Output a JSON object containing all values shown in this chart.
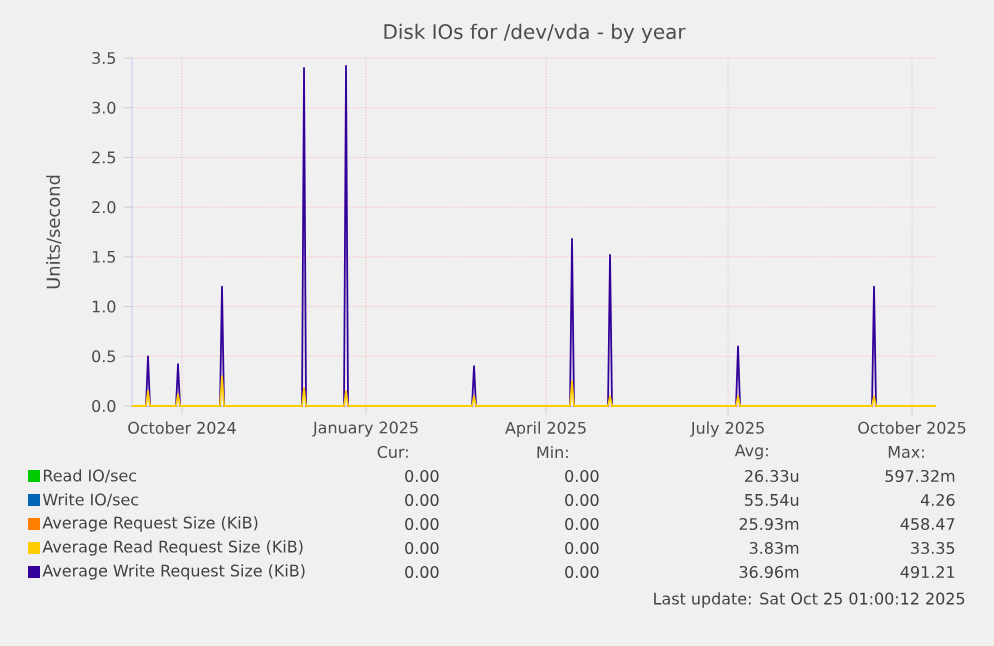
{
  "chart_data": {
    "type": "line",
    "title": "Disk IOs for /dev/vda - by year",
    "ylabel": "Units/second",
    "xlim": [
      "2024-09-06",
      "2025-10-13"
    ],
    "ylim": [
      0,
      3.5
    ],
    "xticks": [
      {
        "value": "2024-10-01",
        "label": "October 2024"
      },
      {
        "value": "2025-01-01",
        "label": "January 2025"
      },
      {
        "value": "2025-04-01",
        "label": "April 2025"
      },
      {
        "value": "2025-07-01",
        "label": "July 2025"
      },
      {
        "value": "2025-10-01",
        "label": "October 2025"
      }
    ],
    "yticks": [
      {
        "value": 0,
        "label": "0.0"
      },
      {
        "value": 0.5,
        "label": "0.5"
      },
      {
        "value": 1,
        "label": "1.0"
      },
      {
        "value": 1.5,
        "label": "1.5"
      },
      {
        "value": 2,
        "label": "2.0"
      },
      {
        "value": 2.5,
        "label": "2.5"
      },
      {
        "value": 3,
        "label": "3.0"
      },
      {
        "value": 3.5,
        "label": "3.5"
      }
    ],
    "grid": true,
    "legend": "bottom",
    "marker": "none",
    "line_style": "solid",
    "series": [
      {
        "name": "Read IO/sec",
        "color": "#00cc00"
      },
      {
        "name": "Write IO/sec",
        "color": "#0066b3"
      },
      {
        "name": "Average Request Size (KiB)",
        "color": "#ff8000"
      },
      {
        "name": "Average Read Request Size (KiB)",
        "color": "#ffcc00",
        "x": [
          "2024-09-06",
          "2024-09-13",
          "2024-09-14",
          "2024-09-15",
          "2024-09-28",
          "2024-09-29",
          "2024-09-30",
          "2024-10-20",
          "2024-10-21",
          "2024-10-22",
          "2024-11-30",
          "2024-12-01",
          "2024-12-02",
          "2024-12-21",
          "2024-12-22",
          "2024-12-23",
          "2025-02-23",
          "2025-02-24",
          "2025-02-25",
          "2025-04-13",
          "2025-04-14",
          "2025-04-15",
          "2025-05-02",
          "2025-05-03",
          "2025-05-04",
          "2025-07-05",
          "2025-07-06",
          "2025-07-07",
          "2025-09-11",
          "2025-09-12",
          "2025-09-13",
          "2025-10-13"
        ],
        "values": [
          0,
          0,
          0.15,
          0,
          0,
          0.12,
          0,
          0,
          0.3,
          0,
          0,
          0.18,
          0,
          0,
          0.15,
          0,
          0,
          0.1,
          0,
          0,
          0.25,
          0,
          0,
          0.1,
          0,
          0,
          0.1,
          0,
          0,
          0.1,
          0,
          0
        ]
      },
      {
        "name": "Average Write Request Size (KiB)",
        "color": "#330099",
        "x": [
          "2024-09-06",
          "2024-09-13",
          "2024-09-14",
          "2024-09-15",
          "2024-09-28",
          "2024-09-29",
          "2024-09-30",
          "2024-10-20",
          "2024-10-21",
          "2024-10-22",
          "2024-11-30",
          "2024-12-01",
          "2024-12-02",
          "2024-12-21",
          "2024-12-22",
          "2024-12-23",
          "2025-02-23",
          "2025-02-24",
          "2025-02-25",
          "2025-04-13",
          "2025-04-14",
          "2025-04-15",
          "2025-05-02",
          "2025-05-03",
          "2025-05-04",
          "2025-07-05",
          "2025-07-06",
          "2025-07-07",
          "2025-09-11",
          "2025-09-12",
          "2025-09-13",
          "2025-10-13"
        ],
        "values": [
          0,
          0,
          0.5,
          0,
          0,
          0.42,
          0,
          0,
          1.2,
          0,
          0,
          3.4,
          0,
          0,
          3.42,
          0,
          0,
          0.4,
          0,
          0,
          1.68,
          0,
          0,
          1.52,
          0,
          0,
          0.6,
          0,
          0,
          1.2,
          0,
          0
        ]
      }
    ],
    "annotations": [
      "Cur:",
      "Min:",
      "Avg:",
      "Max:",
      "0.00",
      "0.00",
      "26.33u",
      "597.32m",
      "0.00",
      "0.00",
      "55.54u",
      "4.26",
      "0.00",
      "0.00",
      "25.93m",
      "458.47",
      "0.00",
      "0.00",
      "3.83m",
      "33.35",
      "0.00",
      "0.00",
      "36.96m",
      "491.21",
      "Last update: Sat Oct 25 01:00:12 2025"
    ]
  }
}
